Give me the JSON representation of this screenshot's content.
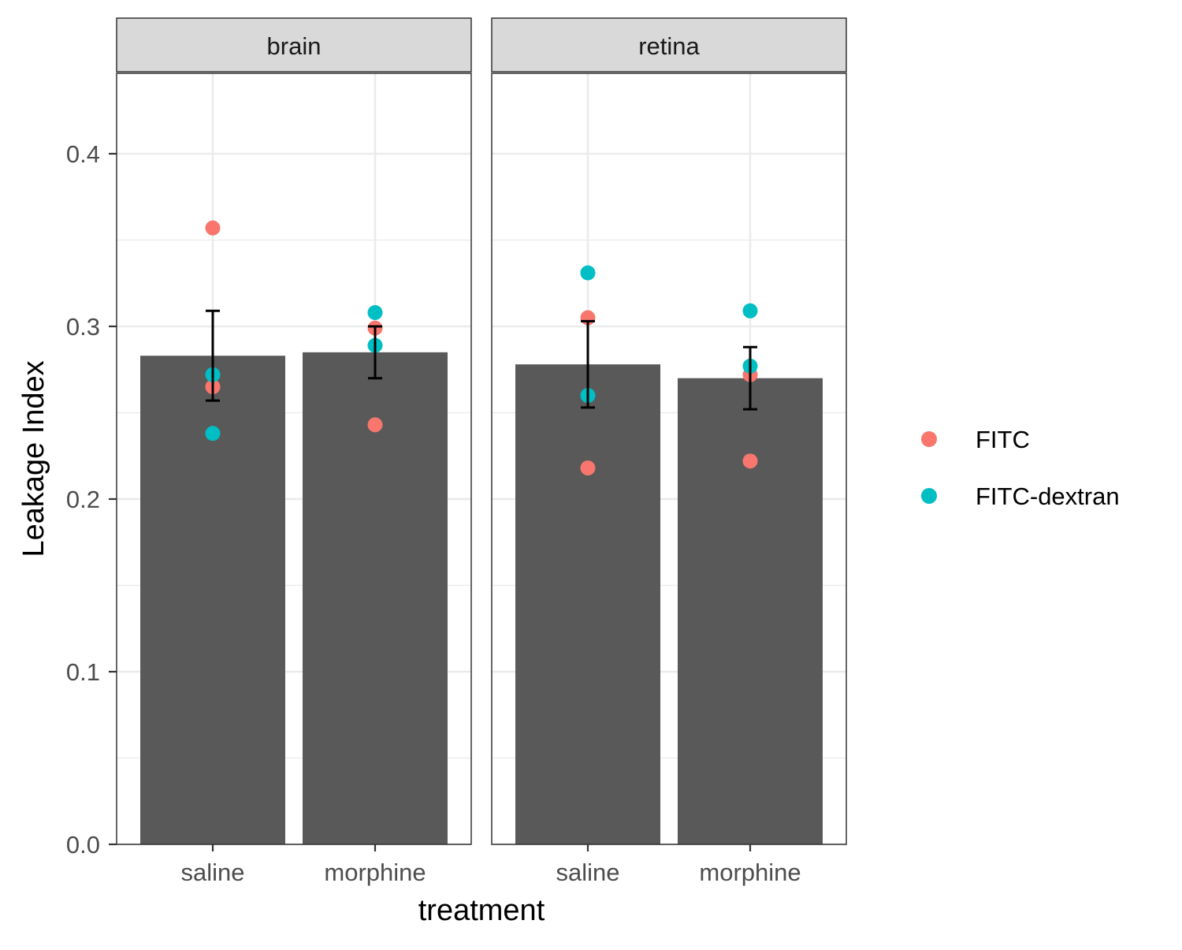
{
  "chart_data": {
    "type": "bar",
    "facets": [
      "brain",
      "retina"
    ],
    "categories": [
      "saline",
      "morphine"
    ],
    "xlabel": "treatment",
    "ylabel": "Leakage Index",
    "ylim": [
      0,
      0.445
    ],
    "y_ticks": [
      "0.0",
      "0.1",
      "0.2",
      "0.3",
      "0.4"
    ],
    "grid": true,
    "legend_position": "right",
    "bar_color": "#595959",
    "error_color": "#000000",
    "bars": [
      {
        "facet": "brain",
        "category": "saline",
        "value": 0.283,
        "err_low": 0.257,
        "err_high": 0.309
      },
      {
        "facet": "brain",
        "category": "morphine",
        "value": 0.285,
        "err_low": 0.27,
        "err_high": 0.3
      },
      {
        "facet": "retina",
        "category": "saline",
        "value": 0.278,
        "err_low": 0.253,
        "err_high": 0.303
      },
      {
        "facet": "retina",
        "category": "morphine",
        "value": 0.27,
        "err_low": 0.252,
        "err_high": 0.288
      }
    ],
    "series": [
      {
        "name": "FITC",
        "color": "#F8766D",
        "points": [
          {
            "facet": "brain",
            "category": "saline",
            "value": 0.357
          },
          {
            "facet": "brain",
            "category": "saline",
            "value": 0.265
          },
          {
            "facet": "brain",
            "category": "morphine",
            "value": 0.299
          },
          {
            "facet": "brain",
            "category": "morphine",
            "value": 0.243
          },
          {
            "facet": "retina",
            "category": "saline",
            "value": 0.305
          },
          {
            "facet": "retina",
            "category": "saline",
            "value": 0.218
          },
          {
            "facet": "retina",
            "category": "morphine",
            "value": 0.272
          },
          {
            "facet": "retina",
            "category": "morphine",
            "value": 0.222
          }
        ]
      },
      {
        "name": "FITC-dextran",
        "color": "#00BFC4",
        "points": [
          {
            "facet": "brain",
            "category": "saline",
            "value": 0.272
          },
          {
            "facet": "brain",
            "category": "saline",
            "value": 0.238
          },
          {
            "facet": "brain",
            "category": "morphine",
            "value": 0.308
          },
          {
            "facet": "brain",
            "category": "morphine",
            "value": 0.289
          },
          {
            "facet": "retina",
            "category": "saline",
            "value": 0.331
          },
          {
            "facet": "retina",
            "category": "saline",
            "value": 0.26
          },
          {
            "facet": "retina",
            "category": "morphine",
            "value": 0.309
          },
          {
            "facet": "retina",
            "category": "morphine",
            "value": 0.277
          }
        ]
      }
    ]
  }
}
